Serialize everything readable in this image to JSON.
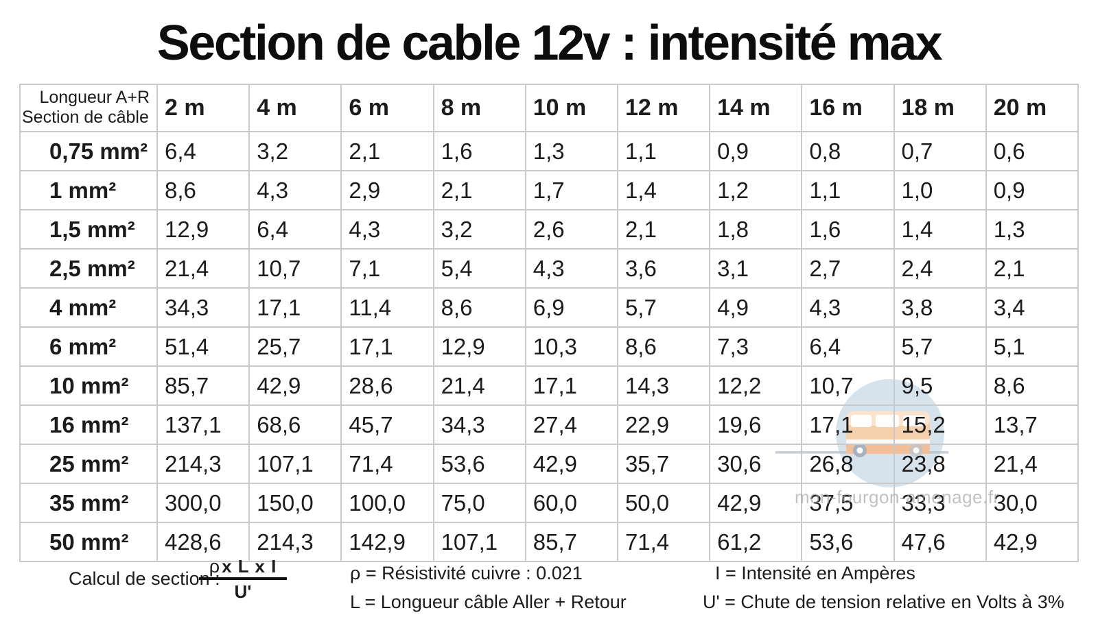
{
  "title": "Section de cable 12v : intensité max",
  "chart_data": {
    "type": "table",
    "title": "Section de cable 12v : intensité max",
    "corner_top_label": "Longueur A+R",
    "corner_bottom_label": "Section de câble",
    "columns": [
      "2 m",
      "4 m",
      "6 m",
      "8 m",
      "10 m",
      "12 m",
      "14 m",
      "16 m",
      "18 m",
      "20 m"
    ],
    "rows": [
      {
        "label": "0,75 mm²",
        "values": [
          "6,4",
          "3,2",
          "2,1",
          "1,6",
          "1,3",
          "1,1",
          "0,9",
          "0,8",
          "0,7",
          "0,6"
        ]
      },
      {
        "label": "1 mm²",
        "values": [
          "8,6",
          "4,3",
          "2,9",
          "2,1",
          "1,7",
          "1,4",
          "1,2",
          "1,1",
          "1,0",
          "0,9"
        ]
      },
      {
        "label": "1,5 mm²",
        "values": [
          "12,9",
          "6,4",
          "4,3",
          "3,2",
          "2,6",
          "2,1",
          "1,8",
          "1,6",
          "1,4",
          "1,3"
        ]
      },
      {
        "label": "2,5 mm²",
        "values": [
          "21,4",
          "10,7",
          "7,1",
          "5,4",
          "4,3",
          "3,6",
          "3,1",
          "2,7",
          "2,4",
          "2,1"
        ]
      },
      {
        "label": "4 mm²",
        "values": [
          "34,3",
          "17,1",
          "11,4",
          "8,6",
          "6,9",
          "5,7",
          "4,9",
          "4,3",
          "3,8",
          "3,4"
        ]
      },
      {
        "label": "6 mm²",
        "values": [
          "51,4",
          "25,7",
          "17,1",
          "12,9",
          "10,3",
          "8,6",
          "7,3",
          "6,4",
          "5,7",
          "5,1"
        ]
      },
      {
        "label": "10 mm²",
        "values": [
          "85,7",
          "42,9",
          "28,6",
          "21,4",
          "17,1",
          "14,3",
          "12,2",
          "10,7",
          "9,5",
          "8,6"
        ]
      },
      {
        "label": "16 mm²",
        "values": [
          "137,1",
          "68,6",
          "45,7",
          "34,3",
          "27,4",
          "22,9",
          "19,6",
          "17,1",
          "15,2",
          "13,7"
        ]
      },
      {
        "label": "25 mm²",
        "values": [
          "214,3",
          "107,1",
          "71,4",
          "53,6",
          "42,9",
          "35,7",
          "30,6",
          "26,8",
          "23,8",
          "21,4"
        ]
      },
      {
        "label": "35 mm²",
        "values": [
          "300,0",
          "150,0",
          "100,0",
          "75,0",
          "60,0",
          "50,0",
          "42,9",
          "37,5",
          "33,3",
          "30,0"
        ]
      },
      {
        "label": "50 mm²",
        "values": [
          "428,6",
          "214,3",
          "142,9",
          "107,1",
          "85,7",
          "71,4",
          "61,2",
          "53,6",
          "47,6",
          "42,9"
        ]
      }
    ]
  },
  "formula": {
    "label": "Calcul de section :",
    "numerator_rho": "ρ",
    "numerator_rest": "x L x I",
    "denominator": "U'"
  },
  "legend": {
    "rho": "ρ = Résistivité cuivre : 0.021",
    "length": "L = Longueur câble Aller + Retour",
    "intensity": "I = Intensité en Ampères",
    "voltage_drop": "U' = Chute de tension relative en Volts à 3%"
  },
  "watermark": {
    "text": "mon-fourgon-amenage.fr",
    "icon": "van-icon"
  },
  "colors": {
    "border": "#c9c9c9",
    "text": "#1c1c1c",
    "title": "#0d0d0d",
    "watermark_circle": "#8fb0ca",
    "van_body": "#f6c69b",
    "van_lower": "#f2b487",
    "watermark_text": "#a0a0a0"
  }
}
